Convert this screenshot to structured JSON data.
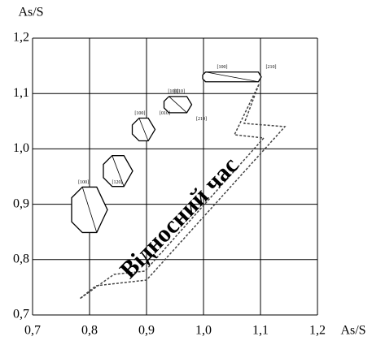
{
  "chart_data": {
    "type": "scatter",
    "x_label": "As/S",
    "y_label": "As/S",
    "xlim": [
      0.7,
      1.2
    ],
    "ylim": [
      0.7,
      1.2
    ],
    "xticks": [
      {
        "value": 0.7,
        "label": "0,7"
      },
      {
        "value": 0.8,
        "label": "0,8"
      },
      {
        "value": 0.9,
        "label": "0,9"
      },
      {
        "value": 1.0,
        "label": "1,0"
      },
      {
        "value": 1.1,
        "label": "1,1"
      },
      {
        "value": 1.2,
        "label": "1,2"
      }
    ],
    "yticks": [
      {
        "value": 0.7,
        "label": "0,7"
      },
      {
        "value": 0.8,
        "label": "0,8"
      },
      {
        "value": 0.9,
        "label": "0,9"
      },
      {
        "value": 1.0,
        "label": "1,0"
      },
      {
        "value": 1.1,
        "label": "1,1"
      },
      {
        "value": 1.2,
        "label": "1,2"
      }
    ],
    "grid": true,
    "color": "#000000",
    "x": [
      1.05,
      0.955,
      0.895,
      0.85,
      0.8
    ],
    "values": [
      1.13,
      1.08,
      1.035,
      0.96,
      0.89
    ],
    "arrow_label": "Відносний час",
    "face_labels": [
      [
        "[100]",
        "[210]"
      ],
      [
        "[101]",
        "[010]",
        "[210]"
      ],
      [
        "[100]",
        "[010]"
      ],
      [],
      [
        "[100]",
        "[120]"
      ]
    ]
  }
}
